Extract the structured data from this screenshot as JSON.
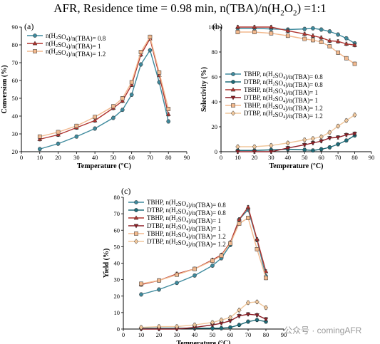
{
  "figure": {
    "title_parts": [
      "AFR, Residence time = 0.98 min, n(TBA)/n(H",
      "2",
      "O",
      "2",
      ") =1:1"
    ],
    "watermark": "公众号 · comingAFR"
  },
  "chart_data": [
    {
      "id": "a",
      "panel_label": "(a)",
      "type": "line",
      "xlabel": "Temperature (°C)",
      "ylabel": "Conversion (%)",
      "xlim": [
        0,
        90
      ],
      "ylim": [
        20,
        90
      ],
      "xticks": [
        0,
        10,
        20,
        30,
        40,
        50,
        60,
        70,
        80,
        90
      ],
      "yticks": [
        20,
        30,
        40,
        50,
        60,
        70,
        80,
        90
      ],
      "grid": false,
      "legend_position": "top-left",
      "x": [
        10,
        20,
        30,
        40,
        50,
        55,
        60,
        65,
        70,
        75,
        80
      ],
      "series": [
        {
          "name": "n(H2SO4)/n(TBA)= 0.8",
          "marker": "circle",
          "color": "#3e8a9d",
          "values": [
            21.5,
            24.5,
            28.5,
            33.0,
            39.0,
            43.5,
            52.0,
            69.0,
            77.0,
            59.0,
            37.0
          ]
        },
        {
          "name": "n(H2SO4)/n(TBA)= 1",
          "marker": "triangle-up",
          "color": "#b0342f",
          "values": [
            27.0,
            29.5,
            33.5,
            37.5,
            44.5,
            48.5,
            57.5,
            74.5,
            83.5,
            63.0,
            41.0
          ]
        },
        {
          "name": "n(H2SO4)/n(TBA)= 1.2",
          "marker": "square",
          "color": "#f2b98e",
          "values": [
            28.5,
            31.0,
            34.5,
            39.5,
            45.5,
            50.0,
            59.0,
            76.0,
            84.5,
            64.5,
            44.0
          ]
        }
      ]
    },
    {
      "id": "b",
      "panel_label": "(b)",
      "type": "line",
      "xlabel": "Temperature (°C)",
      "ylabel": "Selectivity (%)",
      "xlim": [
        0,
        90
      ],
      "ylim": [
        0,
        100
      ],
      "xticks": [
        0,
        10,
        20,
        30,
        40,
        50,
        60,
        70,
        80,
        90
      ],
      "yticks": [
        0,
        20,
        40,
        60,
        80,
        100
      ],
      "grid": false,
      "legend_position": "center-left",
      "x": [
        10,
        20,
        30,
        40,
        50,
        55,
        60,
        65,
        70,
        75,
        80
      ],
      "series": [
        {
          "name": "TBHP, n(H2SO4)/n(TBA)= 0.8",
          "marker": "circle",
          "color": "#3e8a9d",
          "values": [
            99.0,
            99.0,
            98.5,
            98.0,
            98.5,
            99.0,
            98.0,
            96.5,
            94.0,
            91.0,
            87.0
          ]
        },
        {
          "name": "DTBP, n(H2SO4)/n(TBA)= 0.8",
          "marker": "circle",
          "color": "#1d6b78",
          "values": [
            1.0,
            1.0,
            1.5,
            2.0,
            1.5,
            1.0,
            2.0,
            3.5,
            6.0,
            9.0,
            13.0
          ]
        },
        {
          "name": "TBHP, n(H2SO4)/n(TBA)= 1",
          "marker": "triangle-up",
          "color": "#b0342f",
          "values": [
            100.0,
            100.0,
            100.0,
            97.0,
            94.5,
            93.0,
            91.5,
            89.0,
            88.5,
            86.5,
            85.5
          ]
        },
        {
          "name": "DTBP, n(H2SO4)/n(TBA)= 1",
          "marker": "triangle-down",
          "color": "#8e1d25",
          "values": [
            0.0,
            0.0,
            0.0,
            3.0,
            5.5,
            7.0,
            8.5,
            11.0,
            11.5,
            13.5,
            14.5
          ]
        },
        {
          "name": "TBHP, n(H2SO4)/n(TBA)= 1.2",
          "marker": "square",
          "color": "#f2b98e",
          "values": [
            96.0,
            96.0,
            95.0,
            93.0,
            90.5,
            89.5,
            88.0,
            84.5,
            79.5,
            75.0,
            70.5
          ]
        },
        {
          "name": "DTBP, n(H2SO4)/n(TBA)= 1.2",
          "marker": "diamond",
          "color": "#f0c79c",
          "values": [
            4.0,
            4.0,
            5.0,
            7.0,
            9.5,
            10.5,
            12.0,
            15.5,
            20.5,
            25.0,
            29.5
          ]
        }
      ]
    },
    {
      "id": "c",
      "panel_label": "(c)",
      "type": "line",
      "xlabel": "Temperature (°C)",
      "ylabel": "Yield (%)",
      "xlim": [
        0,
        90
      ],
      "ylim": [
        0,
        80
      ],
      "xticks": [
        0,
        10,
        20,
        30,
        40,
        50,
        60,
        70,
        80,
        90
      ],
      "yticks": [
        0,
        10,
        20,
        30,
        40,
        50,
        60,
        70,
        80
      ],
      "grid": false,
      "legend_position": "top-left",
      "x": [
        10,
        20,
        30,
        40,
        50,
        55,
        60,
        65,
        70,
        75,
        80
      ],
      "series": [
        {
          "name": "TBHP, n(H2SO4)/n(TBA)= 0.8",
          "marker": "circle",
          "color": "#3e8a9d",
          "values": [
            21.0,
            24.0,
            28.0,
            32.5,
            38.5,
            43.0,
            51.0,
            66.5,
            72.5,
            54.0,
            32.0
          ]
        },
        {
          "name": "DTBP, n(H2SO4)/n(TBA)= 0.8",
          "marker": "circle",
          "color": "#1d6b78",
          "values": [
            0.5,
            0.5,
            0.5,
            0.5,
            0.5,
            0.5,
            1.0,
            2.5,
            4.5,
            5.5,
            4.5
          ]
        },
        {
          "name": "TBHP, n(H2SO4)/n(TBA)= 1",
          "marker": "triangle-up",
          "color": "#b0342f",
          "values": [
            27.0,
            29.5,
            33.5,
            36.5,
            42.0,
            45.0,
            52.5,
            66.5,
            74.0,
            54.5,
            35.0
          ]
        },
        {
          "name": "DTBP, n(H2SO4)/n(TBA)= 1",
          "marker": "triangle-down",
          "color": "#8e1d25",
          "values": [
            0.0,
            0.0,
            0.0,
            1.0,
            2.5,
            3.5,
            5.0,
            8.0,
            9.0,
            8.5,
            6.0
          ]
        },
        {
          "name": "TBHP, n(H2SO4)/n(TBA)= 1.2",
          "marker": "square",
          "color": "#f2b98e",
          "values": [
            27.5,
            29.5,
            33.0,
            36.5,
            41.5,
            44.5,
            52.0,
            64.0,
            67.5,
            48.5,
            31.0
          ]
        },
        {
          "name": "DTBP, n(H2SO4)/n(TBA)= 1.2",
          "marker": "diamond",
          "color": "#f0c79c",
          "values": [
            1.0,
            1.5,
            1.5,
            2.5,
            4.0,
            5.5,
            7.0,
            11.5,
            16.0,
            16.5,
            13.0
          ]
        }
      ]
    }
  ]
}
